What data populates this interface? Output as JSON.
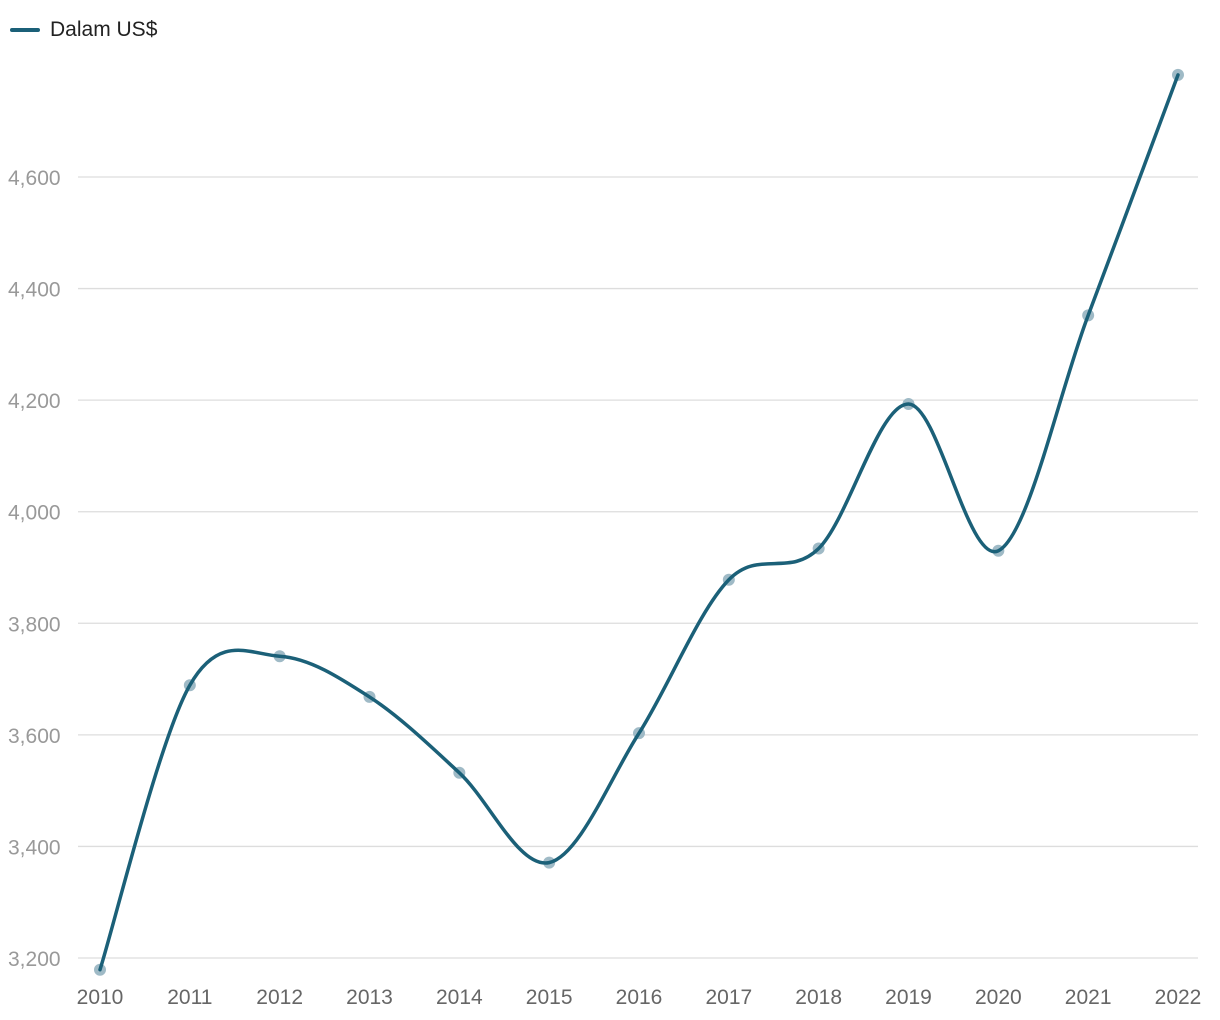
{
  "chart_data": {
    "type": "line",
    "title": "",
    "xlabel": "",
    "ylabel": "",
    "categories": [
      "2010",
      "2011",
      "2012",
      "2013",
      "2014",
      "2015",
      "2016",
      "2017",
      "2018",
      "2019",
      "2020",
      "2021",
      "2022"
    ],
    "series": [
      {
        "name": "Dalam US$",
        "values": [
          3179,
          3689,
          3741,
          3668,
          3532,
          3371,
          3603,
          3878,
          3934,
          4193,
          3930,
          4352,
          4783
        ]
      }
    ],
    "ylim": [
      3200,
      4600
    ],
    "yticks": [
      3200,
      3400,
      3600,
      3800,
      4000,
      4200,
      4400,
      4600
    ],
    "ytick_labels": [
      "3,200",
      "3,400",
      "3,600",
      "3,800",
      "4,000",
      "4,200",
      "4,400",
      "4,600"
    ],
    "grid": true,
    "legend_position": "top-left",
    "smooth": true,
    "markers": true
  },
  "colors": {
    "line": "#1b6078",
    "marker": "#9fbac6",
    "grid": "#dddddd",
    "y_tick_text": "#999999",
    "x_tick_text": "#666666"
  }
}
